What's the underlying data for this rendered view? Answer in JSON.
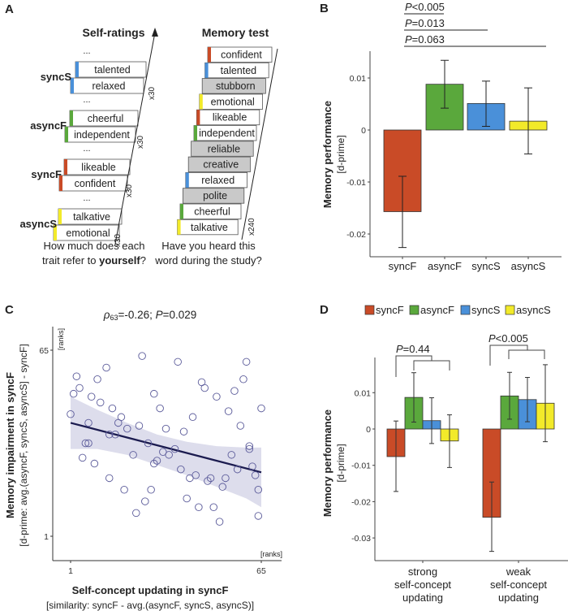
{
  "colors": {
    "syncF": "#c94b27",
    "asyncF": "#5aa83c",
    "syncS": "#4a90d9",
    "asyncS": "#f2ea2a",
    "gray_word": "#c9c9c9",
    "regression_line": "#1b1b4f",
    "ci_band": "#d9d9ea",
    "scatter_point": "#5b5b9a"
  },
  "panelA": {
    "letter": "A",
    "self_ratings": {
      "title": "Self-ratings",
      "groups": [
        {
          "label": "syncS",
          "color_key": "syncS",
          "words": [
            "talented",
            "relaxed"
          ],
          "repeat": "x30"
        },
        {
          "label": "asyncF",
          "color_key": "asyncF",
          "words": [
            "cheerful",
            "independent"
          ],
          "repeat": "x30"
        },
        {
          "label": "syncF",
          "color_key": "syncF",
          "words": [
            "likeable",
            "confident"
          ],
          "repeat": "x30"
        },
        {
          "label": "asyncS",
          "color_key": "asyncS",
          "words": [
            "talkative",
            "emotional"
          ],
          "repeat": "x30"
        }
      ],
      "ellipsis": "...",
      "question_plain": "How much does each",
      "question_line2_plain": "trait refer to ",
      "question_bold": "yourself",
      "question_end": "?"
    },
    "memory_test": {
      "title": "Memory test",
      "words": [
        {
          "word": "confident",
          "color_key": "syncF",
          "gray": false
        },
        {
          "word": "talented",
          "color_key": "syncS",
          "gray": false
        },
        {
          "word": "stubborn",
          "color_key": null,
          "gray": true
        },
        {
          "word": "emotional",
          "color_key": "asyncS",
          "gray": false
        },
        {
          "word": "likeable",
          "color_key": "syncF",
          "gray": false
        },
        {
          "word": "independent",
          "color_key": "asyncF",
          "gray": false
        },
        {
          "word": "reliable",
          "color_key": null,
          "gray": true
        },
        {
          "word": "creative",
          "color_key": null,
          "gray": true
        },
        {
          "word": "relaxed",
          "color_key": "syncS",
          "gray": false
        },
        {
          "word": "polite",
          "color_key": null,
          "gray": true
        },
        {
          "word": "cheerful",
          "color_key": "asyncF",
          "gray": false
        },
        {
          "word": "talkative",
          "color_key": "asyncS",
          "gray": false
        }
      ],
      "repeat": "x240",
      "question_line1": "Have you heard this",
      "question_line2": "word during the study?"
    }
  },
  "chart_data": [
    {
      "panel": "B",
      "type": "bar",
      "title": "",
      "categories": [
        "syncF",
        "asyncF",
        "syncS",
        "asyncS"
      ],
      "values": [
        -0.0157,
        0.0088,
        0.0051,
        0.0017
      ],
      "error_low": [
        -0.0226,
        0.0042,
        0.0007,
        -0.0046
      ],
      "error_high": [
        -0.0089,
        0.0134,
        0.0094,
        0.0081
      ],
      "ylabel": "Memory performance",
      "ylabel_sub": "[d-prime]",
      "yticks": [
        0.01,
        0,
        -0.01,
        -0.02
      ],
      "ytick_labels": [
        "0.01",
        "0",
        "-0.01",
        "-0.02"
      ],
      "ylim": [
        -0.0245,
        0.015
      ],
      "significance": [
        {
          "label_italic": "P",
          "label_rest": "<0.005",
          "from": "syncF",
          "to": "asyncF"
        },
        {
          "label_italic": "P",
          "label_rest": "=0.013",
          "from": "syncF",
          "to": "syncS"
        },
        {
          "label_italic": "P",
          "label_rest": "=0.063",
          "from": "syncF",
          "to": "asyncS"
        }
      ]
    },
    {
      "panel": "C",
      "type": "scatter",
      "title_rho": "ρ",
      "title_sub": "63",
      "title_rest": "=-0.26; ",
      "title_p_italic": "P",
      "title_p_rest": "=0.029",
      "xlabel": "Self-concept updating in syncF",
      "xlabel_sub": "[similarity: syncF - avg.(asyncF, syncS, asyncS)]",
      "ylabel": "Memory impairment in syncF",
      "ylabel_sub": "[d-prime: avg.(asyncF, syncS, asyncS] - syncF]",
      "xunit": "[ranks]",
      "yunit": "[ranks]",
      "xticks": [
        1,
        65
      ],
      "yticks": [
        1,
        65
      ],
      "xlim": [
        -5.5,
        73
      ],
      "ylim": [
        -8,
        73.5
      ],
      "points": [
        [
          1,
          43
        ],
        [
          2,
          50
        ],
        [
          3,
          56
        ],
        [
          4,
          52
        ],
        [
          5,
          28
        ],
        [
          6,
          33
        ],
        [
          7,
          33
        ],
        [
          7,
          40
        ],
        [
          8,
          49
        ],
        [
          9,
          26
        ],
        [
          10,
          55
        ],
        [
          11,
          47
        ],
        [
          13,
          59
        ],
        [
          14,
          21
        ],
        [
          14,
          36
        ],
        [
          15,
          45
        ],
        [
          16,
          36
        ],
        [
          17,
          40
        ],
        [
          18,
          42
        ],
        [
          19,
          17
        ],
        [
          20,
          38
        ],
        [
          22,
          29
        ],
        [
          23,
          9
        ],
        [
          24,
          39
        ],
        [
          25,
          63
        ],
        [
          26,
          13
        ],
        [
          27,
          33
        ],
        [
          28,
          17
        ],
        [
          29,
          26
        ],
        [
          29,
          50
        ],
        [
          30,
          27
        ],
        [
          31,
          45
        ],
        [
          32,
          30
        ],
        [
          33,
          38
        ],
        [
          34,
          29
        ],
        [
          36,
          31
        ],
        [
          37,
          61
        ],
        [
          38,
          24
        ],
        [
          39,
          37
        ],
        [
          40,
          14
        ],
        [
          41,
          21
        ],
        [
          42,
          42
        ],
        [
          43,
          22
        ],
        [
          44,
          11
        ],
        [
          45,
          54
        ],
        [
          46,
          52
        ],
        [
          47,
          20
        ],
        [
          48,
          21
        ],
        [
          49,
          11
        ],
        [
          50,
          49
        ],
        [
          51,
          6
        ],
        [
          52,
          18
        ],
        [
          53,
          21
        ],
        [
          54,
          44
        ],
        [
          55,
          29
        ],
        [
          56,
          51
        ],
        [
          57,
          24
        ],
        [
          58,
          39
        ],
        [
          59,
          55
        ],
        [
          60,
          61
        ],
        [
          61,
          32
        ],
        [
          62,
          25
        ],
        [
          63,
          22
        ],
        [
          64,
          17
        ],
        [
          64,
          8
        ],
        [
          65,
          45
        ],
        [
          61,
          31
        ]
      ],
      "regression": {
        "x": [
          1,
          65
        ],
        "y": [
          40,
          23
        ]
      },
      "ci_band": {
        "x": [
          1,
          10,
          20,
          30,
          40,
          50,
          60,
          65
        ],
        "upper": [
          49,
          44.5,
          40,
          36,
          33.5,
          32,
          31.5,
          31.5
        ],
        "lower": [
          31,
          31,
          29,
          25.5,
          22,
          18,
          14,
          11
        ]
      }
    },
    {
      "panel": "D",
      "type": "bar",
      "legend": [
        "syncF",
        "asyncF",
        "syncS",
        "asyncS"
      ],
      "legend_position": "top",
      "categories": [
        "strong\nself-concept\nupdating",
        "weak\nself-concept\nupdating"
      ],
      "category_lines": [
        [
          "strong",
          "self-concept",
          "updating"
        ],
        [
          "weak",
          "self-concept",
          "updating"
        ]
      ],
      "series": [
        {
          "name": "syncF",
          "values": [
            -0.0076,
            -0.0243
          ],
          "error_low": [
            -0.0172,
            -0.0337
          ],
          "error_high": [
            0.0022,
            -0.0146
          ]
        },
        {
          "name": "asyncF",
          "values": [
            0.0087,
            0.0091
          ],
          "error_low": [
            0.0019,
            0.0027
          ],
          "error_high": [
            0.0155,
            0.0156
          ]
        },
        {
          "name": "syncS",
          "values": [
            0.0023,
            0.0081
          ],
          "error_low": [
            -0.004,
            0.002
          ],
          "error_high": [
            0.0086,
            0.0142
          ]
        },
        {
          "name": "asyncS",
          "values": [
            -0.0033,
            0.0071
          ],
          "error_low": [
            -0.0106,
            -0.0035
          ],
          "error_high": [
            0.0039,
            0.0177
          ]
        }
      ],
      "ylabel": "Memory performance",
      "ylabel_sub": "[d-prime]",
      "yticks": [
        0.01,
        0,
        -0.01,
        -0.02,
        -0.03
      ],
      "ytick_labels": [
        "0.01",
        "0",
        "-0.01",
        "-0.02",
        "-0.03"
      ],
      "ylim": [
        -0.036,
        0.02
      ],
      "significance": [
        {
          "group": 0,
          "label_italic": "P",
          "label_rest": "=0.44"
        },
        {
          "group": 1,
          "label_italic": "P",
          "label_rest": "<0.005"
        }
      ]
    }
  ]
}
